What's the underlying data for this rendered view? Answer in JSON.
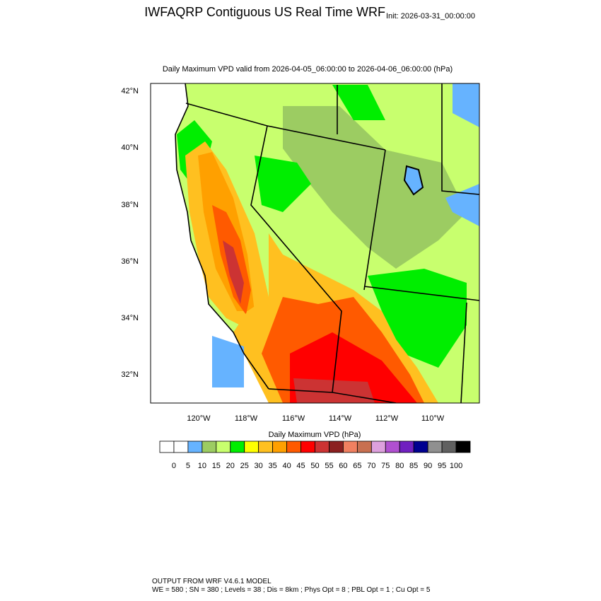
{
  "header": {
    "title": "IWFAQRP Contiguous US Real Time WRF",
    "init": "Init: 2026-03-31_00:00:00"
  },
  "map": {
    "subtitle": "Daily Maximum VPD valid from 2026-04-05_06:00:00 to 2026-04-06_06:00:00   (hPa)",
    "lat_labels": [
      "42°N",
      "40°N",
      "38°N",
      "36°N",
      "34°N",
      "32°N"
    ],
    "lon_labels": [
      "120°W",
      "118°W",
      "116°W",
      "114°W",
      "112°W",
      "110°W"
    ]
  },
  "colorbar": {
    "title": "Daily Maximum VPD  (hPa)",
    "labels": [
      "0",
      "5",
      "10",
      "15",
      "20",
      "25",
      "30",
      "35",
      "40",
      "45",
      "50",
      "55",
      "60",
      "65",
      "70",
      "75",
      "80",
      "85",
      "90",
      "95",
      "100"
    ],
    "colors": [
      "#ffffff",
      "#ffffff",
      "#66b3ff",
      "#9ccc62",
      "#c8ff6e",
      "#00ee00",
      "#ffff00",
      "#ffc020",
      "#ffa000",
      "#ff5a00",
      "#ff0000",
      "#cc3333",
      "#8b2020",
      "#f08060",
      "#c87050",
      "#dda0dd",
      "#b050d0",
      "#7020c0",
      "#000090",
      "#909090",
      "#606060",
      "#000000"
    ]
  },
  "footer": {
    "line1": "OUTPUT FROM WRF V4.6.1 MODEL",
    "line2": "WE = 580 ; SN = 380 ; Levels = 38 ; Dis = 8km ; Phys Opt = 8 ; PBL Opt = 1 ; Cu Opt = 5"
  }
}
